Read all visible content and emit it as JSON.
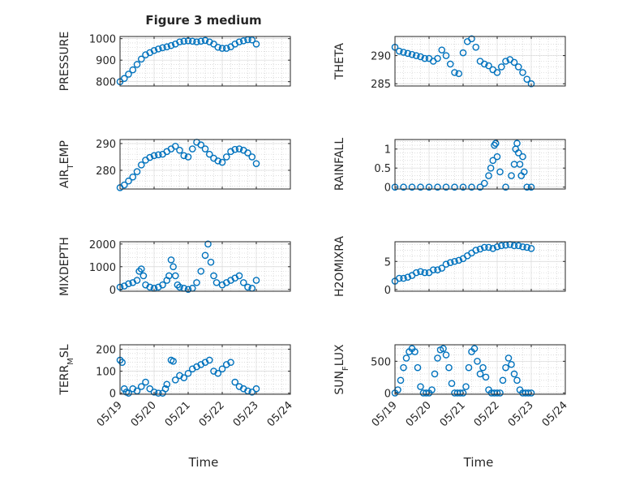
{
  "title": "Figure 3 medium",
  "xlabel": "Time",
  "x_ticks": [
    "05/19",
    "05/20",
    "05/21",
    "05/22",
    "05/23",
    "05/24"
  ],
  "marker_color": "#0072BD",
  "chart_data": [
    {
      "type": "scatter",
      "ylabel": {
        "main": "PRESSURE",
        "sub": ""
      },
      "ylim": [
        780,
        1010
      ],
      "y_ticks": [
        800,
        900,
        1000
      ],
      "grid": "on",
      "series": [
        {
          "x": [
            "05/19 00:00",
            "05/19 03:00",
            "05/19 06:00",
            "05/19 09:00",
            "05/19 12:00",
            "05/19 15:00",
            "05/19 18:00",
            "05/19 21:00",
            "05/20 00:00",
            "05/20 03:00",
            "05/20 06:00",
            "05/20 09:00",
            "05/20 12:00",
            "05/20 15:00",
            "05/20 18:00",
            "05/20 21:00",
            "05/21 00:00",
            "05/21 03:00",
            "05/21 06:00",
            "05/21 09:00",
            "05/21 12:00",
            "05/21 15:00",
            "05/21 18:00",
            "05/21 21:00",
            "05/22 00:00",
            "05/22 03:00",
            "05/22 06:00",
            "05/22 09:00",
            "05/22 12:00",
            "05/22 15:00",
            "05/22 18:00",
            "05/22 21:00",
            "05/23 00:00"
          ],
          "y": [
            800,
            815,
            835,
            855,
            880,
            905,
            925,
            935,
            945,
            952,
            958,
            962,
            968,
            975,
            985,
            988,
            990,
            988,
            985,
            988,
            992,
            985,
            975,
            960,
            955,
            955,
            962,
            975,
            985,
            990,
            995,
            994,
            975
          ]
        }
      ]
    },
    {
      "type": "scatter",
      "ylabel": {
        "main": "THETA",
        "sub": ""
      },
      "ylim": [
        284.6,
        293.4
      ],
      "y_ticks": [
        285,
        290
      ],
      "grid": "on",
      "series": [
        {
          "x": [
            "05/19 00:00",
            "05/19 03:00",
            "05/19 06:00",
            "05/19 09:00",
            "05/19 12:00",
            "05/19 15:00",
            "05/19 18:00",
            "05/19 21:00",
            "05/20 00:00",
            "05/20 03:00",
            "05/20 06:00",
            "05/20 09:00",
            "05/20 12:00",
            "05/20 15:00",
            "05/20 18:00",
            "05/20 21:00",
            "05/21 00:00",
            "05/21 03:00",
            "05/21 06:00",
            "05/21 09:00",
            "05/21 12:00",
            "05/21 15:00",
            "05/21 18:00",
            "05/21 21:00",
            "05/22 00:00",
            "05/22 03:00",
            "05/22 06:00",
            "05/22 09:00",
            "05/22 12:00",
            "05/22 15:00",
            "05/22 18:00",
            "05/22 21:00",
            "05/23 00:00"
          ],
          "y": [
            291.5,
            290.8,
            290.6,
            290.4,
            290.2,
            290.0,
            289.8,
            289.5,
            289.5,
            289.0,
            289.5,
            291.0,
            290.0,
            288.5,
            287.0,
            286.8,
            290.5,
            292.5,
            293.0,
            291.5,
            289.0,
            288.5,
            288.2,
            287.5,
            287.0,
            288.0,
            289.0,
            289.3,
            288.8,
            288.0,
            287.0,
            285.8,
            285.0
          ]
        }
      ]
    },
    {
      "type": "scatter",
      "ylabel": {
        "main": "AIR",
        "sub": "T",
        "tail": "EMP"
      },
      "ylim": [
        273,
        291.5
      ],
      "y_ticks": [
        280,
        290
      ],
      "grid": "on",
      "series": [
        {
          "x": [
            "05/19 00:00",
            "05/19 03:00",
            "05/19 06:00",
            "05/19 09:00",
            "05/19 12:00",
            "05/19 15:00",
            "05/19 18:00",
            "05/19 21:00",
            "05/20 00:00",
            "05/20 03:00",
            "05/20 06:00",
            "05/20 09:00",
            "05/20 12:00",
            "05/20 15:00",
            "05/20 18:00",
            "05/20 21:00",
            "05/21 00:00",
            "05/21 03:00",
            "05/21 06:00",
            "05/21 09:00",
            "05/21 12:00",
            "05/21 15:00",
            "05/21 18:00",
            "05/21 21:00",
            "05/22 00:00",
            "05/22 03:00",
            "05/22 06:00",
            "05/22 09:00",
            "05/22 12:00",
            "05/22 15:00",
            "05/22 18:00",
            "05/22 21:00",
            "05/23 00:00"
          ],
          "y": [
            273.5,
            274.5,
            276.0,
            277.5,
            279.5,
            282.0,
            283.8,
            284.8,
            285.5,
            285.8,
            286.0,
            287.0,
            288.0,
            289.0,
            287.5,
            285.5,
            285.0,
            288.0,
            290.5,
            289.5,
            288.0,
            286.0,
            284.5,
            283.5,
            283.0,
            285.0,
            287.0,
            287.8,
            288.0,
            287.5,
            286.5,
            285.0,
            282.5
          ]
        }
      ]
    },
    {
      "type": "scatter",
      "ylabel": {
        "main": "RAINFALL",
        "sub": ""
      },
      "ylim": [
        -0.05,
        1.25
      ],
      "y_ticks": [
        0,
        0.5,
        1
      ],
      "grid": "on",
      "series": [
        {
          "x": [
            "05/19 00:00",
            "05/19 06:00",
            "05/19 12:00",
            "05/19 18:00",
            "05/20 00:00",
            "05/20 06:00",
            "05/20 12:00",
            "05/20 18:00",
            "05/21 00:00",
            "05/21 06:00",
            "05/21 12:00",
            "05/21 15:00",
            "05/21 18:00",
            "05/21 19:30",
            "05/21 21:00",
            "05/21 22:00",
            "05/21 23:00",
            "05/22 00:00",
            "05/22 02:00",
            "05/22 06:00",
            "05/22 10:00",
            "05/22 12:00",
            "05/22 13:00",
            "05/22 14:00",
            "05/22 15:00",
            "05/22 16:00",
            "05/22 17:00",
            "05/22 18:00",
            "05/22 19:00",
            "05/22 21:00",
            "05/23 00:00"
          ],
          "y": [
            0,
            0,
            0,
            0,
            0,
            0,
            0,
            0,
            0,
            0,
            0,
            0.1,
            0.3,
            0.5,
            0.7,
            1.1,
            1.15,
            0.8,
            0.4,
            0,
            0.3,
            0.6,
            1.0,
            1.15,
            0.9,
            0.6,
            0.3,
            0.8,
            0.4,
            0,
            0
          ]
        }
      ]
    },
    {
      "type": "scatter",
      "ylabel": {
        "main": "MIXDEPTH",
        "sub": ""
      },
      "ylim": [
        -80,
        2100
      ],
      "y_ticks": [
        0,
        1000,
        2000
      ],
      "grid": "on",
      "series": [
        {
          "x": [
            "05/19 00:00",
            "05/19 03:00",
            "05/19 06:00",
            "05/19 09:00",
            "05/19 12:00",
            "05/19 13:30",
            "05/19 15:00",
            "05/19 16:30",
            "05/19 18:00",
            "05/19 21:00",
            "05/20 00:00",
            "05/20 03:00",
            "05/20 06:00",
            "05/20 09:00",
            "05/20 10:30",
            "05/20 12:00",
            "05/20 13:30",
            "05/20 15:00",
            "05/20 16:30",
            "05/20 18:00",
            "05/20 21:00",
            "05/21 00:00",
            "05/21 03:00",
            "05/21 06:00",
            "05/21 09:00",
            "05/21 12:00",
            "05/21 14:00",
            "05/21 16:00",
            "05/21 18:00",
            "05/21 20:00",
            "05/22 00:00",
            "05/22 03:00",
            "05/22 06:00",
            "05/22 09:00",
            "05/22 12:00",
            "05/22 15:00",
            "05/22 18:00",
            "05/22 21:00",
            "05/23 00:00"
          ],
          "y": [
            100,
            150,
            250,
            300,
            400,
            800,
            900,
            600,
            200,
            100,
            50,
            100,
            200,
            400,
            600,
            1300,
            1000,
            600,
            200,
            100,
            50,
            0,
            50,
            300,
            800,
            1500,
            2000,
            1200,
            600,
            300,
            200,
            300,
            400,
            500,
            600,
            300,
            100,
            50,
            400
          ]
        }
      ]
    },
    {
      "type": "scatter",
      "ylabel": {
        "main": "H2OMIXRA",
        "sub": ""
      },
      "ylim": [
        -0.3,
        8.5
      ],
      "y_ticks": [
        0,
        5
      ],
      "grid": "on",
      "series": [
        {
          "x": [
            "05/19 00:00",
            "05/19 03:00",
            "05/19 06:00",
            "05/19 09:00",
            "05/19 12:00",
            "05/19 15:00",
            "05/19 18:00",
            "05/19 21:00",
            "05/20 00:00",
            "05/20 03:00",
            "05/20 06:00",
            "05/20 09:00",
            "05/20 12:00",
            "05/20 15:00",
            "05/20 18:00",
            "05/20 21:00",
            "05/21 00:00",
            "05/21 03:00",
            "05/21 06:00",
            "05/21 09:00",
            "05/21 12:00",
            "05/21 15:00",
            "05/21 18:00",
            "05/21 21:00",
            "05/22 00:00",
            "05/22 03:00",
            "05/22 06:00",
            "05/22 09:00",
            "05/22 12:00",
            "05/22 15:00",
            "05/22 18:00",
            "05/22 21:00",
            "05/23 00:00"
          ],
          "y": [
            1.5,
            2.0,
            2.0,
            2.2,
            2.5,
            3.0,
            3.2,
            3.0,
            3.0,
            3.5,
            3.5,
            3.8,
            4.5,
            4.8,
            5.0,
            5.2,
            5.5,
            6.0,
            6.5,
            7.0,
            7.2,
            7.5,
            7.5,
            7.3,
            7.6,
            7.8,
            7.9,
            8.0,
            7.8,
            7.8,
            7.6,
            7.5,
            7.3
          ]
        }
      ]
    },
    {
      "type": "scatter",
      "ylabel": {
        "main": "TERR",
        "sub": "M",
        "tail": "SL"
      },
      "ylim": [
        -5,
        220
      ],
      "y_ticks": [
        0,
        100,
        200
      ],
      "grid": "on",
      "series": [
        {
          "x": [
            "05/19 00:00",
            "05/19 01:30",
            "05/19 03:00",
            "05/19 04:30",
            "05/19 06:00",
            "05/19 09:00",
            "05/19 12:00",
            "05/19 15:00",
            "05/19 18:00",
            "05/19 21:00",
            "05/20 00:00",
            "05/20 03:00",
            "05/20 06:00",
            "05/20 08:00",
            "05/20 09:00",
            "05/20 12:00",
            "05/20 13:30",
            "05/20 15:00",
            "05/20 18:00",
            "05/20 21:00",
            "05/21 00:00",
            "05/21 03:00",
            "05/21 06:00",
            "05/21 09:00",
            "05/21 12:00",
            "05/21 15:00",
            "05/21 18:00",
            "05/21 21:00",
            "05/22 00:00",
            "05/22 03:00",
            "05/22 06:00",
            "05/22 09:00",
            "05/22 12:00",
            "05/22 15:00",
            "05/22 18:00",
            "05/22 21:00",
            "05/23 00:00"
          ],
          "y": [
            150,
            140,
            20,
            5,
            0,
            20,
            10,
            30,
            50,
            20,
            5,
            0,
            0,
            20,
            40,
            150,
            145,
            60,
            80,
            70,
            90,
            110,
            120,
            130,
            140,
            150,
            100,
            90,
            110,
            130,
            140,
            50,
            30,
            20,
            10,
            5,
            20
          ]
        }
      ]
    },
    {
      "type": "scatter",
      "ylabel": {
        "main": "SUN",
        "sub": "F",
        "tail": "LUX"
      },
      "ylim": [
        -20,
        760
      ],
      "y_ticks": [
        0,
        500
      ],
      "grid": "on",
      "series": [
        {
          "x": [
            "05/19 00:00",
            "05/19 02:00",
            "05/19 04:00",
            "05/19 06:00",
            "05/19 08:00",
            "05/19 10:00",
            "05/19 12:00",
            "05/19 14:00",
            "05/19 16:00",
            "05/19 18:00",
            "05/19 20:00",
            "05/19 22:00",
            "05/20 00:00",
            "05/20 02:00",
            "05/20 04:00",
            "05/20 06:00",
            "05/20 08:00",
            "05/20 10:00",
            "05/20 12:00",
            "05/20 14:00",
            "05/20 16:00",
            "05/20 18:00",
            "05/20 20:00",
            "05/20 22:00",
            "05/21 00:00",
            "05/21 02:00",
            "05/21 04:00",
            "05/21 06:00",
            "05/21 08:00",
            "05/21 10:00",
            "05/21 12:00",
            "05/21 14:00",
            "05/21 16:00",
            "05/21 18:00",
            "05/21 20:00",
            "05/21 22:00",
            "05/22 00:00",
            "05/22 02:00",
            "05/22 04:00",
            "05/22 06:00",
            "05/22 08:00",
            "05/22 10:00",
            "05/22 12:00",
            "05/22 14:00",
            "05/22 16:00",
            "05/22 18:00",
            "05/22 20:00",
            "05/22 22:00",
            "05/23 00:00"
          ],
          "y": [
            0,
            50,
            200,
            400,
            550,
            650,
            700,
            650,
            400,
            100,
            0,
            0,
            0,
            50,
            300,
            550,
            680,
            700,
            600,
            400,
            150,
            0,
            0,
            0,
            0,
            100,
            400,
            650,
            700,
            500,
            300,
            400,
            250,
            50,
            0,
            0,
            0,
            0,
            200,
            400,
            550,
            450,
            300,
            200,
            50,
            0,
            0,
            0,
            0
          ]
        }
      ]
    }
  ]
}
